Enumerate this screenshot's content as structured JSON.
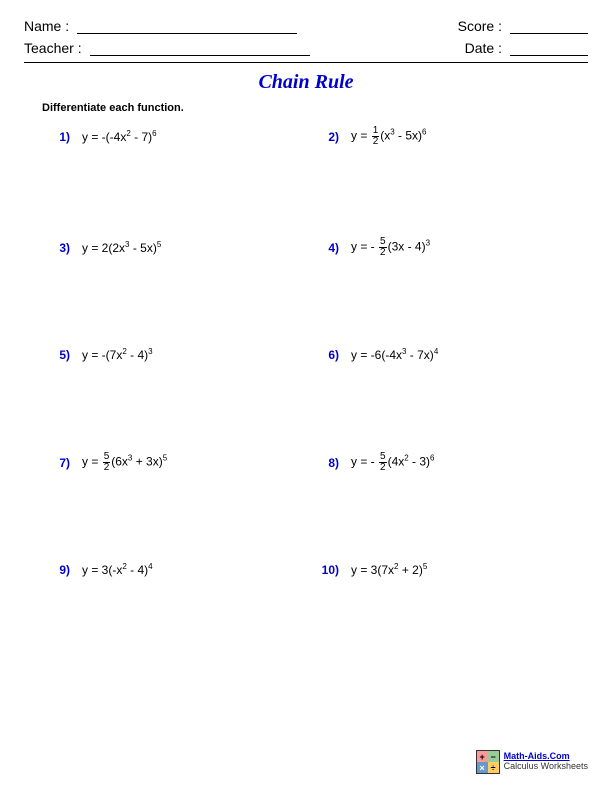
{
  "header": {
    "name_label": "Name :",
    "teacher_label": "Teacher :",
    "score_label": "Score :",
    "date_label": "Date :"
  },
  "title": "Chain Rule",
  "instructions": "Differentiate each function.",
  "problems": [
    {
      "n": "1)",
      "pre": "y = -(-4x",
      "e1": "2",
      "mid": " - 7)",
      "e2": "6",
      "frac": null
    },
    {
      "n": "2)",
      "pre": "y = ",
      "frac": {
        "num": "1",
        "den": "2"
      },
      "post1": "(x",
      "e1": "3",
      "mid": " - 5x)",
      "e2": "6"
    },
    {
      "n": "3)",
      "pre": "y = 2(2x",
      "e1": "3",
      "mid": " - 5x)",
      "e2": "5",
      "frac": null
    },
    {
      "n": "4)",
      "pre": "y = - ",
      "frac": {
        "num": "5",
        "den": "2"
      },
      "post1": "(3x - 4)",
      "e1": null,
      "mid": "",
      "e2": "3"
    },
    {
      "n": "5)",
      "pre": "y = -(7x",
      "e1": "2",
      "mid": " - 4)",
      "e2": "3",
      "frac": null
    },
    {
      "n": "6)",
      "pre": "y = -6(-4x",
      "e1": "3",
      "mid": " - 7x)",
      "e2": "4",
      "frac": null
    },
    {
      "n": "7)",
      "pre": "y = ",
      "frac": {
        "num": "5",
        "den": "2"
      },
      "post1": "(6x",
      "e1": "3",
      "mid": " + 3x)",
      "e2": "5"
    },
    {
      "n": "8)",
      "pre": "y = - ",
      "frac": {
        "num": "5",
        "den": "2"
      },
      "post1": "(4x",
      "e1": "2",
      "mid": " - 3)",
      "e2": "6"
    },
    {
      "n": "9)",
      "pre": "y = 3(-x",
      "e1": "2",
      "mid": " - 4)",
      "e2": "4",
      "frac": null
    },
    {
      "n": "10)",
      "pre": "y = 3(7x",
      "e1": "2",
      "mid": " + 2)",
      "e2": "5",
      "frac": null
    }
  ],
  "footer": {
    "line1": "Math-Aids.Com",
    "line2": "Calculus Worksheets",
    "glyphs": {
      "q1": "+",
      "q2": "−",
      "q3": "×",
      "q4": "÷"
    }
  },
  "colors": {
    "accent": "#0000cc",
    "text": "#000000",
    "background": "#ffffff"
  }
}
